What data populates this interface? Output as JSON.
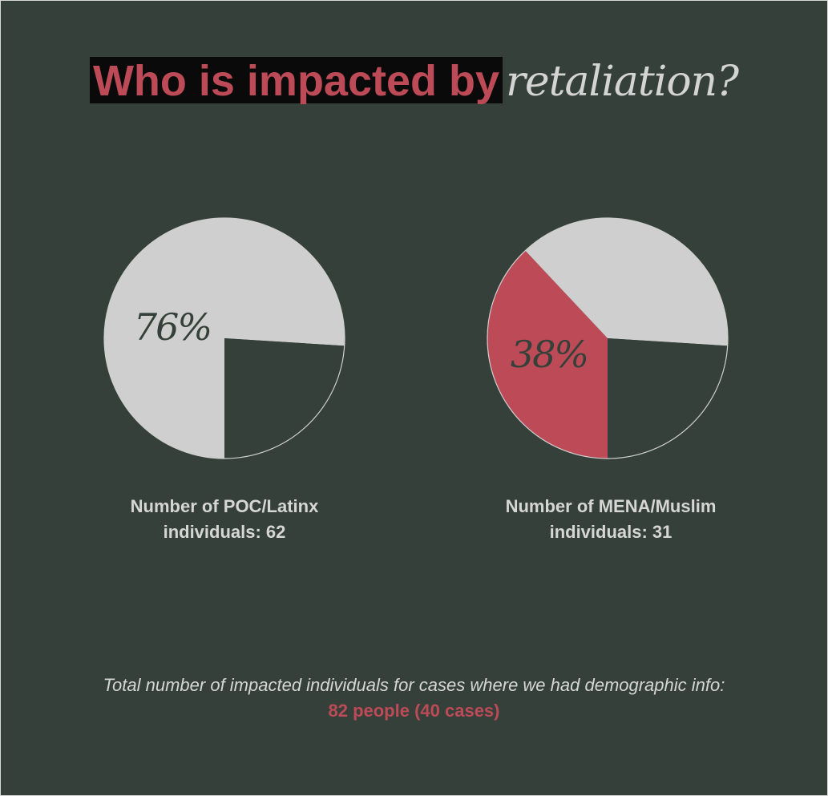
{
  "title": {
    "highlight": "Who is impacted by",
    "italic": "retaliation?"
  },
  "colors": {
    "background": "#344039",
    "slice_light": "#cfcfcf",
    "slice_accent": "#bd4b57",
    "text_light": "#d6d6d6",
    "title_box": "#0a0a0a"
  },
  "chart_data": [
    {
      "type": "pie",
      "title": "",
      "percent_label": "76%",
      "value_percent": 76,
      "slices": [
        {
          "label": "76%",
          "value": 76,
          "color": "#cfcfcf"
        },
        {
          "label": "",
          "value": 24,
          "color": "#344039"
        }
      ],
      "caption_line1": "Number of POC/Latinx",
      "caption_line2": "individuals: 62"
    },
    {
      "type": "pie",
      "title": "",
      "percent_label": "38%",
      "value_percent": 38,
      "slices": [
        {
          "label": "38%",
          "value": 38,
          "color": "#bd4b57"
        },
        {
          "label": "",
          "value": 38,
          "color": "#cfcfcf"
        },
        {
          "label": "",
          "value": 24,
          "color": "#344039"
        }
      ],
      "caption_line1": "Number of MENA/Muslim",
      "caption_line2": "individuals: 31"
    }
  ],
  "footnote": {
    "line1": "Total number of impacted individuals for cases where we had demographic info:",
    "line2": "82 people (40 cases)"
  }
}
